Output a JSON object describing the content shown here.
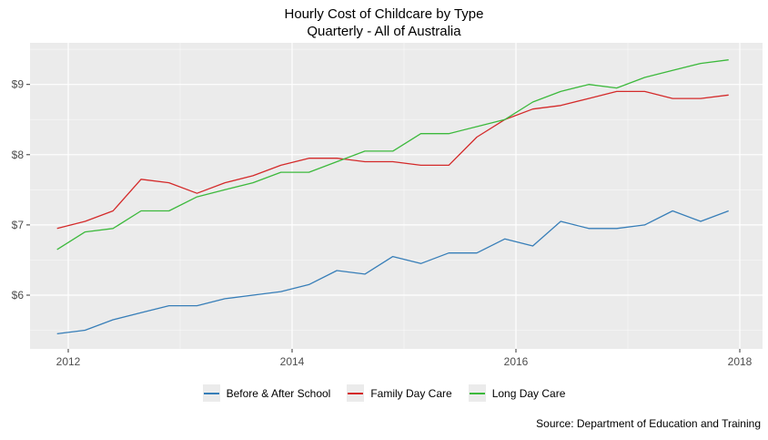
{
  "title": "Hourly Cost of Childcare by Type",
  "subtitle": "Quarterly - All of Australia",
  "source_caption": "Source: Department of Education and Training",
  "colors": {
    "panel_background": "#ebebeb",
    "grid_major": "#ffffff",
    "grid_minor": "#ffffff",
    "axis_text": "#4d4d4d",
    "tick_mark": "#333333",
    "title_text": "#000000"
  },
  "chart_data": {
    "type": "line",
    "title": "Hourly Cost of Childcare by Type",
    "subtitle": "Quarterly - All of Australia",
    "xlabel": "",
    "ylabel": "",
    "x_unit": "quarterly time axis (years shown)",
    "x_start_year": 2011.9,
    "x_step_years": 0.25,
    "xlim": [
      2011.66,
      2018.2
    ],
    "ylim": [
      5.2,
      9.6
    ],
    "x_tick_labels": [
      "2012",
      "2014",
      "2016",
      "2018"
    ],
    "x_major_ticks": [
      2012,
      2014,
      2016,
      2018
    ],
    "x_minor_ticks": [
      2013,
      2015,
      2017
    ],
    "y_tick_labels": [
      "$6",
      "$7",
      "$8",
      "$9"
    ],
    "y_major_ticks": [
      6,
      7,
      8,
      9
    ],
    "y_minor_ticks": [
      5.5,
      6.5,
      7.5,
      8.5,
      9.5
    ],
    "grid": "on",
    "legend_position": "bottom",
    "background_style": "grey panel with white gridlines",
    "quarters": [
      "2011 Q4",
      "2012 Q1",
      "2012 Q2",
      "2012 Q3",
      "2012 Q4",
      "2013 Q1",
      "2013 Q2",
      "2013 Q3",
      "2013 Q4",
      "2014 Q1",
      "2014 Q2",
      "2014 Q3",
      "2014 Q4",
      "2015 Q1",
      "2015 Q2",
      "2015 Q3",
      "2015 Q4",
      "2016 Q1",
      "2016 Q2",
      "2016 Q3",
      "2016 Q4",
      "2017 Q1",
      "2017 Q2",
      "2017 Q3",
      "2017 Q4"
    ],
    "series": [
      {
        "name": "Before & After School",
        "color": "#377eb8",
        "values": [
          5.45,
          5.5,
          5.65,
          5.75,
          5.85,
          5.85,
          5.95,
          6.0,
          6.05,
          6.15,
          6.35,
          6.3,
          6.55,
          6.45,
          6.6,
          6.6,
          6.8,
          6.7,
          7.05,
          6.95,
          6.95,
          7.0,
          7.2,
          7.05,
          7.2
        ]
      },
      {
        "name": "Family Day Care",
        "color": "#d42a2a",
        "values": [
          6.95,
          7.05,
          7.2,
          7.65,
          7.6,
          7.45,
          7.6,
          7.7,
          7.85,
          7.95,
          7.95,
          7.9,
          7.9,
          7.85,
          7.85,
          8.25,
          8.5,
          8.65,
          8.7,
          8.8,
          8.9,
          8.9,
          8.8,
          8.8,
          8.85
        ]
      },
      {
        "name": "Long Day Care",
        "color": "#3cb93c",
        "values": [
          6.65,
          6.9,
          6.95,
          7.2,
          7.2,
          7.4,
          7.5,
          7.6,
          7.75,
          7.75,
          7.9,
          8.05,
          8.05,
          8.3,
          8.3,
          8.4,
          8.5,
          8.75,
          8.9,
          9.0,
          8.95,
          9.1,
          9.2,
          9.3,
          9.35
        ]
      }
    ]
  }
}
